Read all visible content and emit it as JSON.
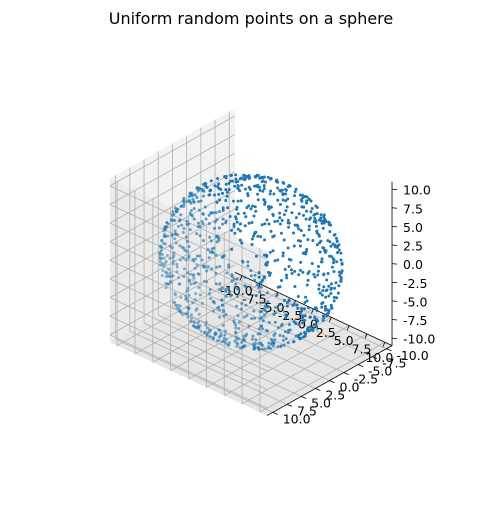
{
  "chart_data": {
    "type": "scatter",
    "projection": "3d",
    "title": "Uniform random points on a sphere",
    "xlabel": "",
    "ylabel": "",
    "zlabel": "",
    "grid": true,
    "legend": "none",
    "xlim": [
      -11,
      11
    ],
    "ylim": [
      -11,
      11
    ],
    "zlim": [
      -11,
      11
    ],
    "x_ticks": [
      "-10.0",
      "-7.5",
      "-5.0",
      "-2.5",
      "0.0",
      "2.5",
      "5.0",
      "7.5",
      "10.0"
    ],
    "y_ticks": [
      "-10.0",
      "-7.5",
      "-5.0",
      "-2.5",
      "0.0",
      "2.5",
      "5.0",
      "7.5",
      "10.0"
    ],
    "z_ticks": [
      "-10.0",
      "-7.5",
      "-5.0",
      "-2.5",
      "0.0",
      "2.5",
      "5.0",
      "7.5",
      "10.0"
    ],
    "tick_values": [
      -10,
      -7.5,
      -5,
      -2.5,
      0,
      2.5,
      5,
      7.5,
      10
    ],
    "sphere_radius": 10,
    "point_count": 1000,
    "point_color": "#1f77b4",
    "pane_colors": {
      "x": "#f2f2f2",
      "y": "#ebebeb",
      "z": "#e6e6e6"
    },
    "grid_color": "#b0b0b0"
  }
}
